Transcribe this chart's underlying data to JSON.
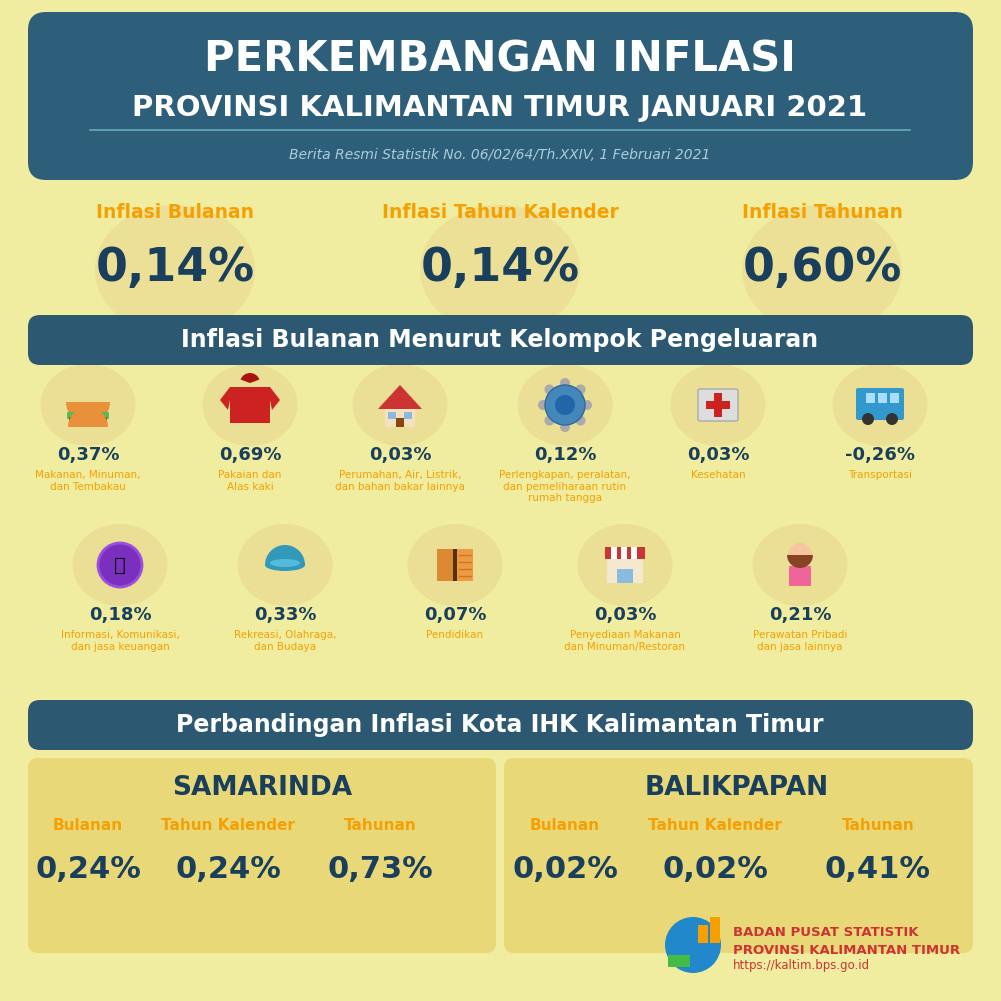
{
  "bg_color": "#f0eda0",
  "header_bg": "#2d5f7a",
  "header_title1": "PERKEMBANGAN INFLASI",
  "header_title2": "PROVINSI KALIMANTAN TIMUR JANUARI 2021",
  "header_subtitle": "Berita Resmi Statistik No. 06/02/64/Th.XXIV, 1 Februari 2021",
  "inflasi_labels": [
    "Inflasi Bulanan",
    "Inflasi Tahun Kalender",
    "Inflasi Tahunan"
  ],
  "inflasi_values": [
    "0,14%",
    "0,14%",
    "0,60%"
  ],
  "orange_color": "#f5a000",
  "dark_blue": "#1a3f5c",
  "section2_title": "Inflasi Bulanan Menurut Kelompok Pengeluaran",
  "section2_bg": "#2d5872",
  "row1_values": [
    "0,37%",
    "0,69%",
    "0,03%",
    "0,12%",
    "0,03%",
    "-0,26%"
  ],
  "row1_labels": [
    "Makanan, Minuman,\ndan Tembakau",
    "Pakaian dan\nAlas kaki",
    "Perumahan, Air, Listrik,\ndan bahan bakar lainnya",
    "Perlengkapan, peralatan,\ndan pemeliharaan rutin\nrumah tangga",
    "Kesehatan",
    "Transportasi"
  ],
  "row2_values": [
    "0,18%",
    "0,33%",
    "0,07%",
    "0,03%",
    "0,21%"
  ],
  "row2_labels": [
    "Informasi, Komunikasi,\ndan jasa keuangan",
    "Rekreasi, Olahraga,\ndan Budaya",
    "Pendidikan",
    "Penyediaan Makanan\ndan Minuman/Restoran",
    "Perawatan Pribadi\ndan jasa lainnya"
  ],
  "section3_title": "Perbandingan Inflasi Kota IHK Kalimantan Timur",
  "city1": "SAMARINDA",
  "city2": "BALIKPAPAN",
  "city1_labels": [
    "Bulanan",
    "Tahun Kalender",
    "Tahunan"
  ],
  "city1_values": [
    "0,24%",
    "0,24%",
    "0,73%"
  ],
  "city2_labels": [
    "Bulanan",
    "Tahun Kalender",
    "Tahunan"
  ],
  "city2_values": [
    "0,02%",
    "0,02%",
    "0,41%"
  ],
  "bps_text1": "BADAN PUSAT STATISTIK",
  "bps_text2": "PROVINSI KALIMANTAN TIMUR",
  "bps_url": "https://kaltim.bps.go.id",
  "bps_red": "#cc3333",
  "circle_color": "#e8d890",
  "box_color": "#e8d878"
}
